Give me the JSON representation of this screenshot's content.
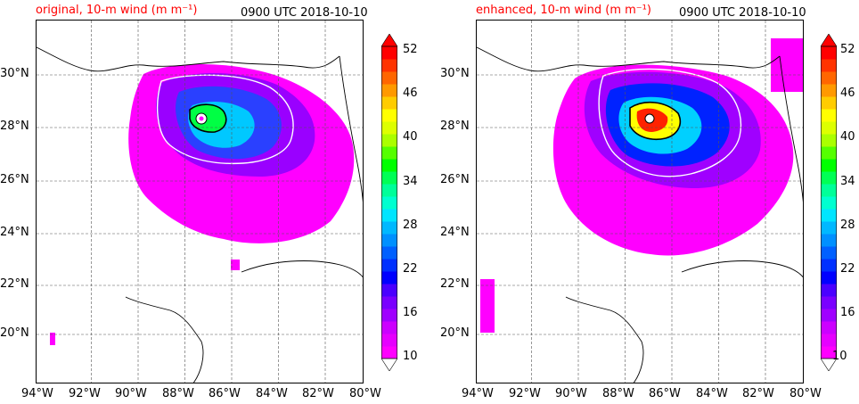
{
  "panels": [
    {
      "title_left": "original, 10-m wind (m m⁻¹)",
      "title_right": "0900 UTC 2018-10-10"
    },
    {
      "title_left": "enhanced, 10-m wind (m m⁻¹)",
      "title_right": "0900 UTC 2018-10-10"
    }
  ],
  "lat_labels": [
    "30°N",
    "28°N",
    "26°N",
    "24°N",
    "22°N",
    "20°N"
  ],
  "lon_labels": [
    "94°W",
    "92°W",
    "90°W",
    "88°W",
    "86°W",
    "84°W",
    "82°W",
    "80°W"
  ],
  "colorbar": {
    "labels": [
      "52",
      "46",
      "40",
      "34",
      "28",
      "22",
      "16",
      "10"
    ],
    "colors": [
      "#ff00ff",
      "#e600ff",
      "#cc00ff",
      "#a000ff",
      "#7a00ff",
      "#4a00ff",
      "#0000ff",
      "#0030ff",
      "#0060ff",
      "#0090ff",
      "#00b8ff",
      "#00e5ff",
      "#00ffd0",
      "#00ff99",
      "#00ff55",
      "#00ff00",
      "#55ff00",
      "#aaff00",
      "#ddff00",
      "#ffff00",
      "#ffcc00",
      "#ff9900",
      "#ff6600",
      "#ff3300",
      "#ff0000"
    ]
  }
}
